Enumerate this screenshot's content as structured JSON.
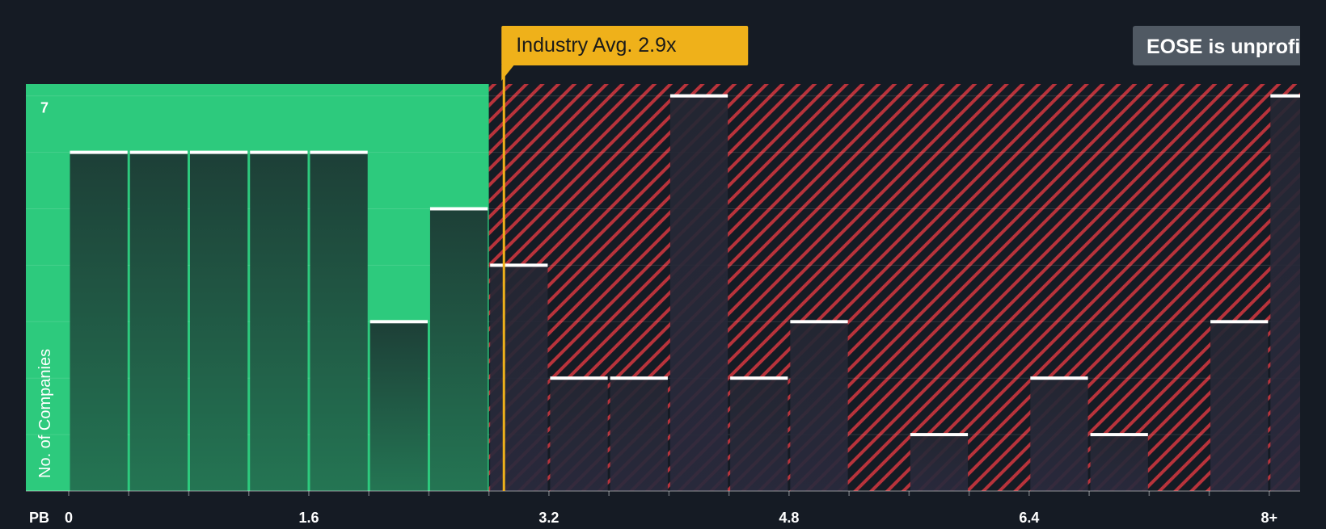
{
  "chart_data": {
    "type": "bar",
    "metric_label": "PB",
    "ylabel": "No. of Companies",
    "x_ticks": [
      "0",
      "1.6",
      "3.2",
      "4.8",
      "6.4",
      "8+"
    ],
    "x_tick_values": [
      0,
      1.6,
      3.2,
      4.8,
      6.4,
      8
    ],
    "y_tick_labels": [
      "7"
    ],
    "y_tick_values": [
      7
    ],
    "ylim": [
      0,
      7.3
    ],
    "bin_width": 0.4,
    "bins": [
      {
        "start": 0.0,
        "end": 0.4,
        "count": 6
      },
      {
        "start": 0.4,
        "end": 0.8,
        "count": 6
      },
      {
        "start": 0.8,
        "end": 1.2,
        "count": 6
      },
      {
        "start": 1.2,
        "end": 1.6,
        "count": 6
      },
      {
        "start": 1.6,
        "end": 2.0,
        "count": 6
      },
      {
        "start": 2.0,
        "end": 2.4,
        "count": 3
      },
      {
        "start": 2.4,
        "end": 2.8,
        "count": 5
      },
      {
        "start": 2.8,
        "end": 3.2,
        "count": 4
      },
      {
        "start": 3.2,
        "end": 3.6,
        "count": 2
      },
      {
        "start": 3.6,
        "end": 4.0,
        "count": 2
      },
      {
        "start": 4.0,
        "end": 4.4,
        "count": 7
      },
      {
        "start": 4.4,
        "end": 4.8,
        "count": 2
      },
      {
        "start": 4.8,
        "end": 5.2,
        "count": 3
      },
      {
        "start": 5.2,
        "end": 5.6,
        "count": 0
      },
      {
        "start": 5.6,
        "end": 6.0,
        "count": 1
      },
      {
        "start": 6.0,
        "end": 6.4,
        "count": 0
      },
      {
        "start": 6.4,
        "end": 6.8,
        "count": 2
      },
      {
        "start": 6.8,
        "end": 7.2,
        "count": 1
      },
      {
        "start": 7.2,
        "end": 7.6,
        "count": 0
      },
      {
        "start": 7.6,
        "end": 8.0,
        "count": 3
      },
      {
        "start": 8.0,
        "end": 8.4,
        "count": 7
      }
    ],
    "fair_value_threshold": 2.8,
    "industry_avg": {
      "value": 2.9,
      "label": "Industry Avg. 2.9x"
    },
    "company_badge": {
      "text": "EOSE is unprofitable"
    },
    "grid": true,
    "colors": {
      "background": "#151b24",
      "undervalued_fill": "#2dca7d",
      "overvalued_stripe": "#b8333b",
      "bar_fill_green": "#1f4a3c",
      "bar_fill_dark": "#272a3a",
      "bar_top": "#ffffff",
      "industry_line": "#efb11a",
      "badge_fill": "#505963",
      "axis_text": "#ffffff"
    }
  }
}
